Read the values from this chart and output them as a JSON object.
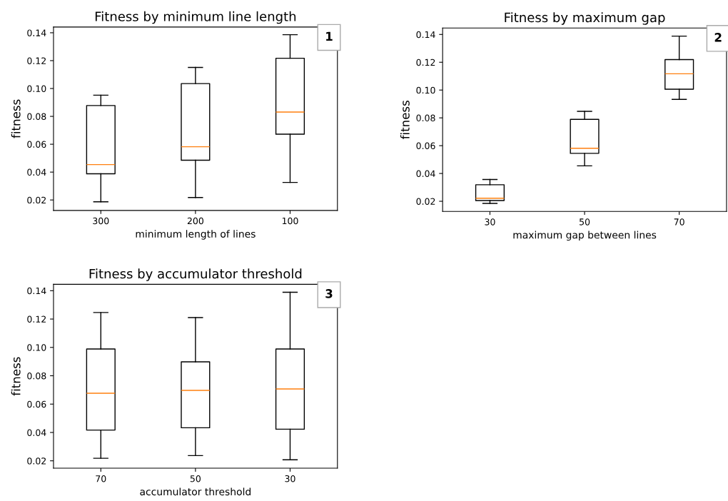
{
  "chart_data": [
    {
      "type": "box",
      "title": "Fitness by minimum line length",
      "xlabel": "minimum length of lines",
      "ylabel": "fitness",
      "categories": [
        "300",
        "200",
        "100"
      ],
      "boxes": [
        {
          "low": 0.0187,
          "q1": 0.0388,
          "median": 0.0454,
          "q3": 0.0878,
          "high": 0.0952
        },
        {
          "low": 0.0218,
          "q1": 0.0485,
          "median": 0.0582,
          "q3": 0.1035,
          "high": 0.1151
        },
        {
          "low": 0.0326,
          "q1": 0.0672,
          "median": 0.0831,
          "q3": 0.1217,
          "high": 0.1386
        }
      ],
      "ylim": [
        0.0125,
        0.1441
      ],
      "yticks": [
        {
          "value": 0.02,
          "label": "0.02"
        },
        {
          "value": 0.04,
          "label": "0.04"
        },
        {
          "value": 0.06,
          "label": "0.06"
        },
        {
          "value": 0.08,
          "label": "0.08"
        },
        {
          "value": 0.1,
          "label": "0.10"
        },
        {
          "value": 0.12,
          "label": "0.12"
        },
        {
          "value": 0.14,
          "label": "0.14"
        }
      ],
      "annotations": [
        "1"
      ]
    },
    {
      "type": "box",
      "title": "Fitness by maximum gap",
      "xlabel": "maximum gap between lines",
      "ylabel": "fitness",
      "categories": [
        "30",
        "50",
        "70"
      ],
      "boxes": [
        {
          "low": 0.0185,
          "q1": 0.0205,
          "median": 0.0222,
          "q3": 0.0319,
          "high": 0.0357
        },
        {
          "low": 0.0455,
          "q1": 0.0545,
          "median": 0.0581,
          "q3": 0.0789,
          "high": 0.0847
        },
        {
          "low": 0.0933,
          "q1": 0.1006,
          "median": 0.1117,
          "q3": 0.1219,
          "high": 0.1388
        }
      ],
      "ylim": [
        0.0127,
        0.1446
      ],
      "yticks": [
        {
          "value": 0.02,
          "label": "0.02"
        },
        {
          "value": 0.04,
          "label": "0.04"
        },
        {
          "value": 0.06,
          "label": "0.06"
        },
        {
          "value": 0.08,
          "label": "0.08"
        },
        {
          "value": 0.1,
          "label": "0.10"
        },
        {
          "value": 0.12,
          "label": "0.12"
        },
        {
          "value": 0.14,
          "label": "0.14"
        }
      ],
      "annotations": [
        "2"
      ]
    },
    {
      "type": "box",
      "title": "Fitness by accumulator threshold",
      "xlabel": "accumulator threshold",
      "ylabel": "fitness",
      "categories": [
        "70",
        "50",
        "30"
      ],
      "boxes": [
        {
          "low": 0.0218,
          "q1": 0.0417,
          "median": 0.0677,
          "q3": 0.0989,
          "high": 0.1246
        },
        {
          "low": 0.0237,
          "q1": 0.0433,
          "median": 0.0697,
          "q3": 0.0898,
          "high": 0.121
        },
        {
          "low": 0.0207,
          "q1": 0.0423,
          "median": 0.0707,
          "q3": 0.0989,
          "high": 0.1389
        }
      ],
      "ylim": [
        0.0148,
        0.1445
      ],
      "yticks": [
        {
          "value": 0.02,
          "label": "0.02"
        },
        {
          "value": 0.04,
          "label": "0.04"
        },
        {
          "value": 0.06,
          "label": "0.06"
        },
        {
          "value": 0.08,
          "label": "0.08"
        },
        {
          "value": 0.1,
          "label": "0.10"
        },
        {
          "value": 0.12,
          "label": "0.12"
        },
        {
          "value": 0.14,
          "label": "0.14"
        }
      ],
      "annotations": [
        "3"
      ]
    }
  ]
}
